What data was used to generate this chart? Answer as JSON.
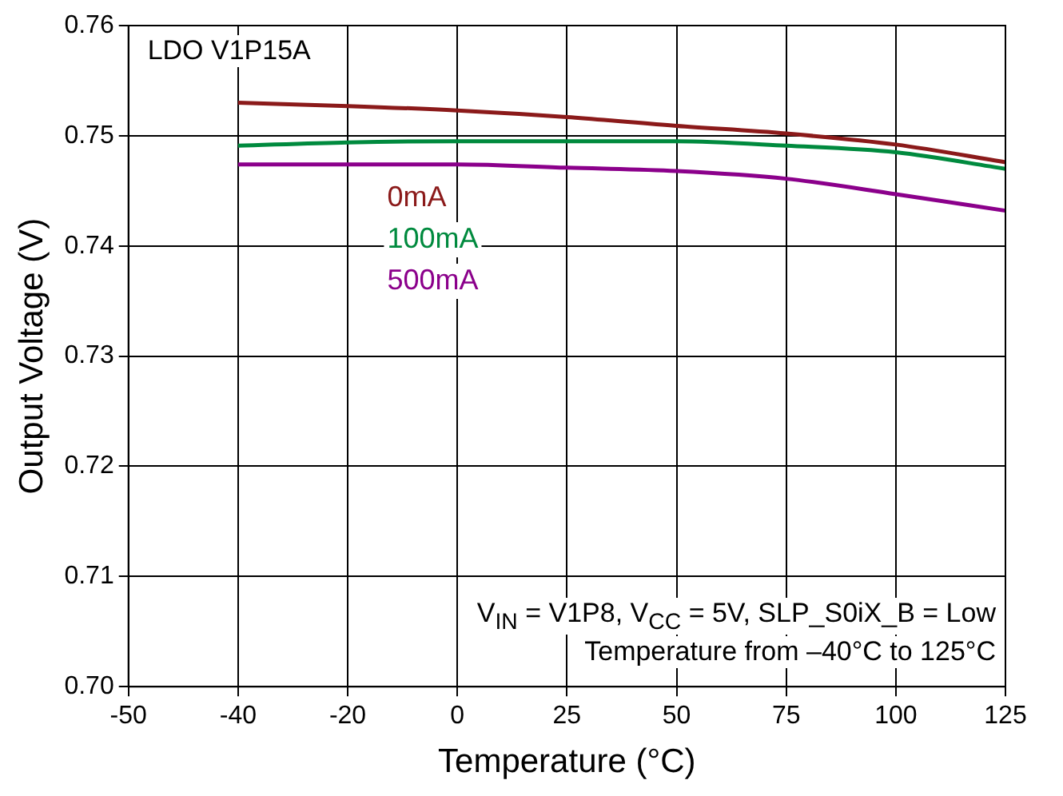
{
  "chart_data": {
    "type": "line",
    "xlabel": "Temperature (°C)",
    "ylabel": "Output Voltage (V)",
    "categories": [
      "-50",
      "-40",
      "-20",
      "0",
      "25",
      "50",
      "75",
      "100",
      "125"
    ],
    "series": [
      {
        "name": "0mA",
        "color": "#8b1a1a",
        "values": [
          null,
          0.753,
          0.7527,
          0.7523,
          0.7517,
          0.7509,
          0.7502,
          0.7492,
          0.7476
        ]
      },
      {
        "name": "100mA",
        "color": "#008a3e",
        "values": [
          null,
          0.7491,
          0.7494,
          0.7495,
          0.7495,
          0.7495,
          0.7491,
          0.7485,
          0.747
        ]
      },
      {
        "name": "500mA",
        "color": "#8b008b",
        "values": [
          null,
          0.7474,
          0.7474,
          0.7474,
          0.7471,
          0.7468,
          0.7461,
          0.7447,
          0.7432
        ]
      }
    ],
    "ylim": [
      0.7,
      0.76
    ],
    "yticks": [
      {
        "value": 0.7,
        "label": "0.70"
      },
      0.71,
      0.72,
      0.73,
      0.74,
      0.75,
      0.76
    ],
    "grid": true,
    "legend": false,
    "marker": "none",
    "line_style": "solid",
    "annotations": [
      "LDO V1P15A",
      "V$_{IN}$ = V1P8, V$_{CC}$ = 5V, SLP_S0iX_B = Low",
      "Temperature from –40°C to 125°C"
    ]
  }
}
